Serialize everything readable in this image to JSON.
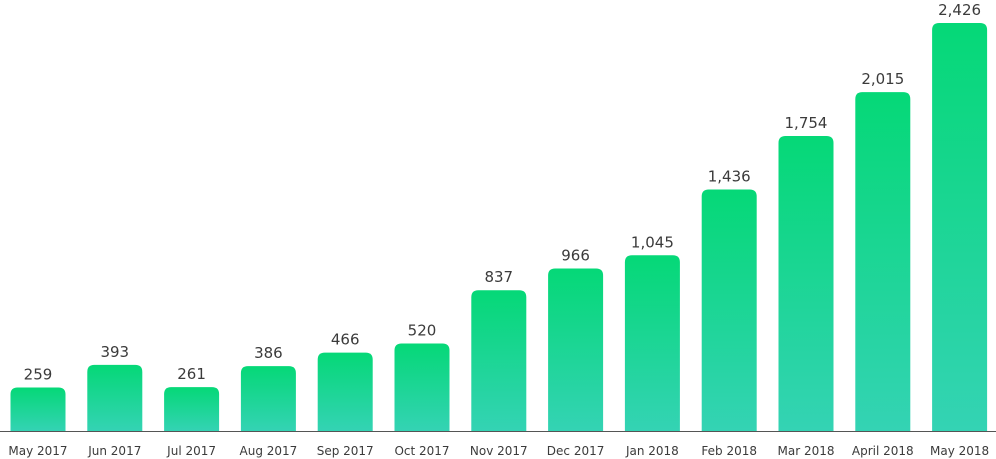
{
  "chart_data": {
    "type": "bar",
    "categories": [
      "May 2017",
      "Jun 2017",
      "Jul 2017",
      "Aug 2017",
      "Sep 2017",
      "Oct 2017",
      "Nov 2017",
      "Dec 2017",
      "Jan 2018",
      "Feb 2018",
      "Mar 2018",
      "April 2018",
      "May 2018"
    ],
    "values": [
      259,
      393,
      261,
      386,
      466,
      520,
      837,
      966,
      1045,
      1436,
      1754,
      2015,
      2426
    ],
    "value_labels": [
      "259",
      "393",
      "261",
      "386",
      "466",
      "520",
      "837",
      "966",
      "1,045",
      "1,436",
      "1,754",
      "2,015",
      "2,426"
    ],
    "title": "",
    "xlabel": "",
    "ylabel": "",
    "ylim": [
      0,
      2426
    ],
    "grid": false,
    "colors": {
      "bar_top": "#05d877",
      "bar_bottom": "#34d3b4",
      "axis": "#555555",
      "text": "#3b3b3b"
    }
  }
}
